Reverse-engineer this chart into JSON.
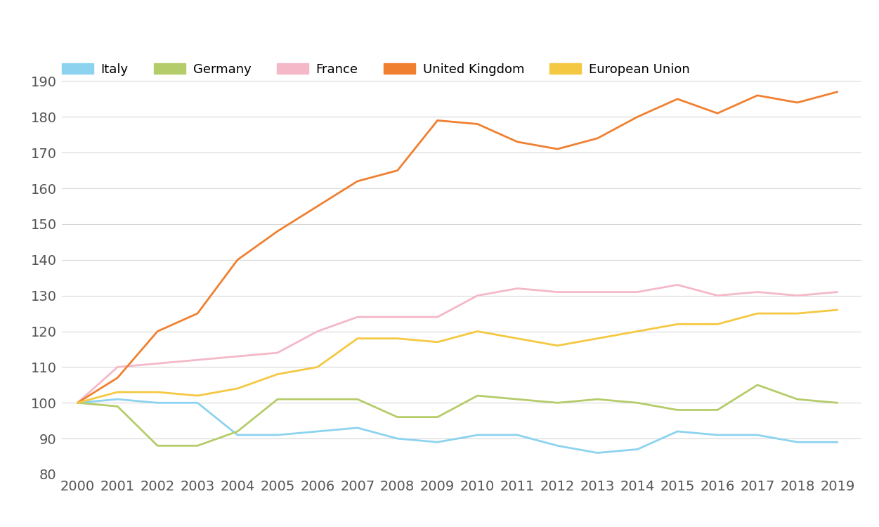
{
  "years": [
    2000,
    2001,
    2002,
    2003,
    2004,
    2005,
    2006,
    2007,
    2008,
    2009,
    2010,
    2011,
    2012,
    2013,
    2014,
    2015,
    2016,
    2017,
    2018,
    2019
  ],
  "series": {
    "Italy": [
      100,
      101,
      100,
      100,
      91,
      91,
      92,
      93,
      90,
      89,
      91,
      91,
      88,
      86,
      87,
      92,
      91,
      91,
      89,
      89
    ],
    "Germany": [
      100,
      99,
      88,
      88,
      92,
      101,
      101,
      101,
      96,
      96,
      102,
      101,
      100,
      101,
      100,
      98,
      98,
      105,
      101,
      100
    ],
    "France": [
      100,
      110,
      111,
      112,
      113,
      114,
      120,
      124,
      124,
      124,
      130,
      132,
      131,
      131,
      131,
      133,
      130,
      131,
      130,
      131
    ],
    "United Kingdom": [
      100,
      107,
      120,
      125,
      140,
      148,
      155,
      162,
      165,
      179,
      178,
      173,
      171,
      174,
      180,
      185,
      181,
      186,
      184,
      187
    ],
    "European Union": [
      100,
      103,
      103,
      102,
      104,
      108,
      110,
      118,
      118,
      117,
      120,
      118,
      116,
      118,
      120,
      122,
      122,
      125,
      125,
      126
    ]
  },
  "colors": {
    "Italy": "#8DD3F0",
    "Germany": "#B5CC6A",
    "France": "#F5B8C8",
    "United Kingdom": "#F08030",
    "European Union": "#F5C842"
  },
  "ylim": [
    80,
    195
  ],
  "yticks": [
    80,
    90,
    100,
    110,
    120,
    130,
    140,
    150,
    160,
    170,
    180,
    190
  ],
  "background_color": "#FFFFFF",
  "grid_color": "#D8D8D8",
  "legend_order": [
    "Italy",
    "Germany",
    "France",
    "United Kingdom",
    "European Union"
  ],
  "tick_color": "#555555",
  "tick_fontsize": 14,
  "linewidth": 2.0
}
